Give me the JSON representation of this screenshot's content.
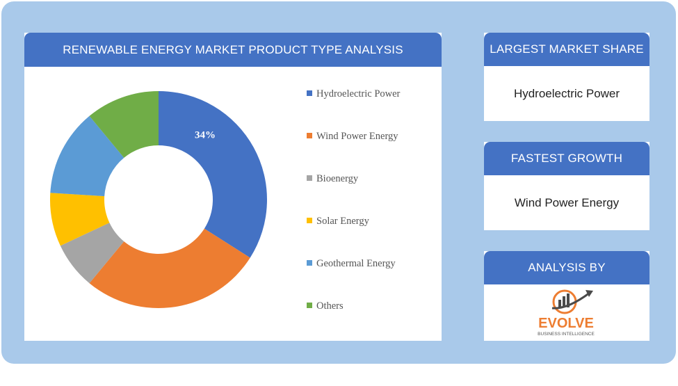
{
  "chart_panel": {
    "title": "RENEWABLE ENERGY MARKET PRODUCT TYPE ANALYSIS"
  },
  "chart_data": {
    "type": "pie",
    "donut": true,
    "categories": [
      "Hydroelectric Power",
      "Wind Power Energy",
      "Bioenergy",
      "Solar Energy",
      "Geothermal Energy",
      "Others"
    ],
    "values": [
      34,
      27,
      7,
      8,
      13,
      11
    ],
    "colors": [
      "#4472c4",
      "#ed7d31",
      "#a5a5a5",
      "#ffc000",
      "#5b9bd5",
      "#70ad47"
    ],
    "data_labels": [
      "34%",
      "",
      "",
      "",
      "",
      ""
    ],
    "legend_position": "right"
  },
  "largest_share": {
    "title": "LARGEST MARKET SHARE",
    "value": "Hydroelectric Power"
  },
  "fastest_growth": {
    "title": "FASTEST GROWTH",
    "value": "Wind Power Energy"
  },
  "analysis_by": {
    "title": "ANALYSIS BY",
    "logo_name": "EVOLVE",
    "logo_tagline": "BUSINESS INTELLIGENCE"
  }
}
